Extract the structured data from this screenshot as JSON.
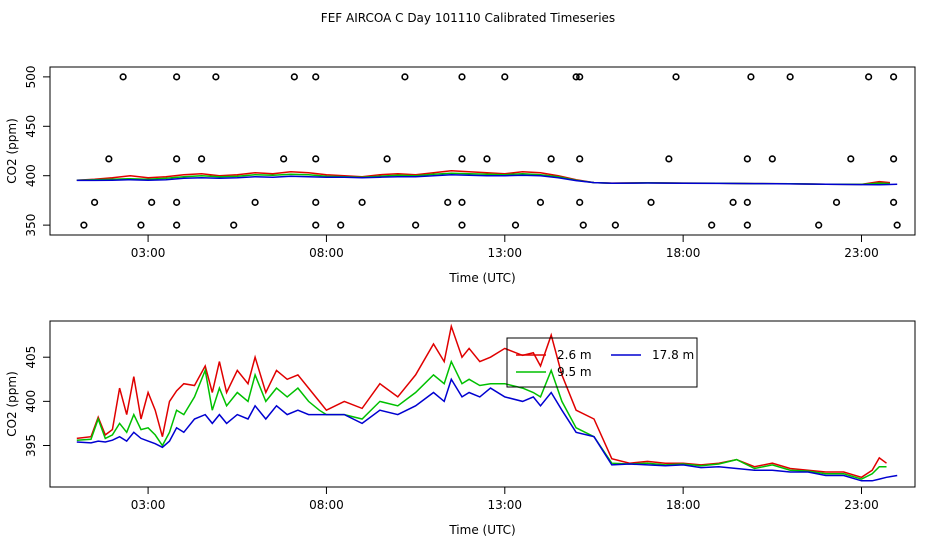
{
  "title": "FEF AIRCOA C  Day 101110  Calibrated Timeseries",
  "colors": {
    "c2_6": "#e00000",
    "c9_5": "#00c000",
    "c17_8": "#0000d0",
    "axis": "#000000",
    "bg": "#ffffff"
  },
  "chart_data": [
    {
      "type": "line",
      "panel": "top",
      "xlabel": "Time (UTC)",
      "ylabel": "CO2 (ppm)",
      "xlim": [
        0.25,
        24.5
      ],
      "ylim": [
        340,
        510
      ],
      "x_ticks": [
        3,
        8,
        13,
        18,
        23
      ],
      "x_tick_labels": [
        "03:00",
        "08:00",
        "13:00",
        "18:00",
        "23:00"
      ],
      "y_ticks": [
        350,
        400,
        450,
        500
      ],
      "y_tick_labels": [
        "350",
        "400",
        "450",
        "500"
      ],
      "series": [
        {
          "name": "2.6 m",
          "color_key": "c2_6",
          "x": [
            1.0,
            1.5,
            2.0,
            2.5,
            3.0,
            3.5,
            4.0,
            4.5,
            5.0,
            5.5,
            6.0,
            6.5,
            7.0,
            7.5,
            8.0,
            8.5,
            9.0,
            9.5,
            10.0,
            10.5,
            11.0,
            11.5,
            12.0,
            12.5,
            13.0,
            13.5,
            14.0,
            14.5,
            15.0,
            15.5,
            16.0,
            17.0,
            18.0,
            19.0,
            20.0,
            21.0,
            22.0,
            23.0,
            23.5,
            23.8
          ],
          "values": [
            395.5,
            396.5,
            398,
            400,
            398,
            399,
            401,
            402,
            400,
            401,
            403,
            402,
            404,
            403,
            401,
            400,
            399,
            401,
            402,
            401,
            403,
            405,
            404,
            403,
            402,
            404,
            403,
            400,
            396,
            393,
            392.5,
            392.8,
            392.5,
            392.3,
            392,
            391.8,
            391.4,
            391.2,
            394,
            393
          ]
        },
        {
          "name": "9.5 m",
          "color_key": "c9_5",
          "x": [
            1.0,
            1.5,
            2.0,
            2.5,
            3.0,
            3.5,
            4.0,
            4.5,
            5.0,
            5.5,
            6.0,
            6.5,
            7.0,
            7.5,
            8.0,
            8.5,
            9.0,
            9.5,
            10.0,
            10.5,
            11.0,
            11.5,
            12.0,
            12.5,
            13.0,
            13.5,
            14.0,
            14.5,
            15.0,
            15.5,
            16.0,
            17.0,
            18.0,
            19.0,
            20.0,
            21.0,
            22.0,
            23.0,
            23.5,
            23.8
          ],
          "values": [
            395.5,
            396,
            396.5,
            397,
            396.5,
            397.5,
            399,
            400,
            399,
            399.5,
            401,
            400.5,
            401.5,
            401,
            399.5,
            399,
            398.5,
            399.5,
            400.5,
            400,
            401.5,
            402.5,
            402,
            401.5,
            401,
            402,
            401,
            399,
            395.5,
            393,
            392.4,
            392.7,
            392.5,
            392.3,
            392,
            391.8,
            391.4,
            391.2,
            392.5,
            392
          ]
        },
        {
          "name": "17.8 m",
          "color_key": "c17_8",
          "x": [
            1.0,
            1.5,
            2.0,
            2.5,
            3.0,
            3.5,
            4.0,
            4.5,
            5.0,
            5.5,
            6.0,
            6.5,
            7.0,
            7.5,
            8.0,
            8.5,
            9.0,
            9.5,
            10.0,
            10.5,
            11.0,
            11.5,
            12.0,
            12.5,
            13.0,
            13.5,
            14.0,
            14.5,
            15.0,
            15.5,
            16.0,
            17.0,
            18.0,
            19.0,
            20.0,
            21.0,
            22.0,
            23.0,
            23.5,
            24.0
          ],
          "values": [
            395.3,
            395.3,
            395.5,
            396,
            395.5,
            396,
            397.5,
            398,
            397.5,
            398,
            399,
            398.5,
            399.5,
            399,
            398.5,
            398.5,
            398,
            398.5,
            399,
            399,
            400,
            401,
            400.5,
            400,
            400,
            400.5,
            400,
            398,
            395,
            393,
            392.3,
            392.6,
            392.4,
            392.2,
            392,
            391.7,
            391.3,
            391,
            390.8,
            391.3
          ]
        }
      ],
      "scatter": {
        "name": "calibration points",
        "x": [
          1.2,
          2.8,
          3.8,
          5.4,
          7.7,
          8.4,
          10.5,
          11.8,
          13.3,
          15.2,
          16.1,
          18.8,
          19.8,
          21.8,
          24.0,
          1.5,
          3.1,
          3.8,
          6.0,
          7.7,
          9.0,
          11.4,
          11.8,
          14.0,
          15.1,
          17.1,
          19.4,
          19.8,
          22.3,
          23.9,
          1.9,
          3.8,
          4.5,
          6.8,
          7.7,
          9.7,
          11.8,
          12.5,
          14.3,
          15.1,
          17.6,
          19.8,
          20.5,
          22.7,
          23.9,
          2.3,
          3.8,
          4.9,
          7.1,
          7.7,
          10.2,
          11.8,
          13.0,
          15.0,
          15.1,
          17.8,
          19.9,
          21.0,
          23.2,
          23.9
        ],
        "values": [
          350,
          350,
          350,
          350,
          350,
          350,
          350,
          350,
          350,
          350,
          350,
          350,
          350,
          350,
          350,
          373,
          373,
          373,
          373,
          373,
          373,
          373,
          373,
          373,
          373,
          373,
          373,
          373,
          373,
          373,
          417,
          417,
          417,
          417,
          417,
          417,
          417,
          417,
          417,
          417,
          417,
          417,
          417,
          417,
          417,
          500,
          500,
          500,
          500,
          500,
          500,
          500,
          500,
          500,
          500,
          500,
          500,
          500,
          500,
          500
        ]
      }
    },
    {
      "type": "line",
      "panel": "bottom",
      "xlabel": "Time (UTC)",
      "ylabel": "CO2 (ppm)",
      "xlim": [
        0.25,
        24.5
      ],
      "ylim": [
        390.3,
        409.1
      ],
      "x_ticks": [
        3,
        8,
        13,
        18,
        23
      ],
      "x_tick_labels": [
        "03:00",
        "08:00",
        "13:00",
        "18:00",
        "23:00"
      ],
      "y_ticks": [
        395,
        400,
        405
      ],
      "y_tick_labels": [
        "395",
        "400",
        "405"
      ],
      "legend": {
        "placement": "top-center",
        "entries": [
          "2.6 m",
          "17.8 m",
          "9.5 m"
        ]
      },
      "series": [
        {
          "name": "2.6 m",
          "color_key": "c2_6",
          "x": [
            1.0,
            1.4,
            1.6,
            1.8,
            2.0,
            2.2,
            2.4,
            2.6,
            2.8,
            3.0,
            3.2,
            3.4,
            3.6,
            3.8,
            4.0,
            4.3,
            4.6,
            4.8,
            5.0,
            5.2,
            5.5,
            5.8,
            6.0,
            6.3,
            6.6,
            6.9,
            7.2,
            7.5,
            7.8,
            8.0,
            8.5,
            9.0,
            9.5,
            10.0,
            10.5,
            11.0,
            11.3,
            11.5,
            11.8,
            12.0,
            12.3,
            12.6,
            13.0,
            13.5,
            13.8,
            14.0,
            14.3,
            14.6,
            15.0,
            15.5,
            16.0,
            16.5,
            17.0,
            17.5,
            18.0,
            18.5,
            19.0,
            19.5,
            20.0,
            20.5,
            21.0,
            21.5,
            22.0,
            22.5,
            23.0,
            23.3,
            23.5,
            23.7
          ],
          "values": [
            395.8,
            396.0,
            398.2,
            396.2,
            396.8,
            401.5,
            398.5,
            402.8,
            398.0,
            401.0,
            399.0,
            396.0,
            400.0,
            401.2,
            402.0,
            401.8,
            404.0,
            401.0,
            404.5,
            401.0,
            403.5,
            402.0,
            405.0,
            401.0,
            403.5,
            402.5,
            403.0,
            401.5,
            400.0,
            399.0,
            400.0,
            399.2,
            402.0,
            400.5,
            403.0,
            406.5,
            404.5,
            408.5,
            405.0,
            406.0,
            404.5,
            405.0,
            406.0,
            405.2,
            405.5,
            404.0,
            407.5,
            403.0,
            399.0,
            398.0,
            393.5,
            393.0,
            393.2,
            393.0,
            393.0,
            392.8,
            393.0,
            393.4,
            392.6,
            393.0,
            392.4,
            392.2,
            392.0,
            392.0,
            391.4,
            392.2,
            393.6,
            393.0
          ]
        },
        {
          "name": "9.5 m",
          "color_key": "c9_5",
          "x": [
            1.0,
            1.4,
            1.6,
            1.8,
            2.0,
            2.2,
            2.4,
            2.6,
            2.8,
            3.0,
            3.2,
            3.4,
            3.6,
            3.8,
            4.0,
            4.3,
            4.6,
            4.8,
            5.0,
            5.2,
            5.5,
            5.8,
            6.0,
            6.3,
            6.6,
            6.9,
            7.2,
            7.5,
            7.8,
            8.0,
            8.5,
            9.0,
            9.5,
            10.0,
            10.5,
            11.0,
            11.3,
            11.5,
            11.8,
            12.0,
            12.3,
            12.6,
            13.0,
            13.5,
            13.8,
            14.0,
            14.3,
            14.6,
            15.0,
            15.5,
            16.0,
            16.5,
            17.0,
            17.5,
            18.0,
            18.5,
            19.0,
            19.5,
            20.0,
            20.5,
            21.0,
            21.5,
            22.0,
            22.5,
            23.0,
            23.3,
            23.5,
            23.7
          ],
          "values": [
            395.6,
            395.7,
            398.0,
            395.8,
            396.2,
            397.5,
            396.5,
            398.5,
            396.8,
            397.0,
            396.2,
            395.0,
            396.5,
            399.0,
            398.5,
            400.5,
            403.5,
            399.0,
            401.5,
            399.5,
            401.0,
            400.0,
            403.0,
            400.0,
            401.5,
            400.5,
            401.5,
            400.0,
            399.0,
            398.5,
            398.5,
            398.0,
            400.0,
            399.5,
            401.0,
            403.0,
            402.0,
            404.5,
            402.0,
            402.5,
            401.8,
            402.0,
            402.0,
            401.5,
            401.0,
            400.5,
            403.5,
            400.0,
            397.0,
            396.0,
            393.0,
            392.9,
            393.0,
            392.8,
            392.9,
            392.7,
            392.9,
            393.4,
            392.4,
            392.8,
            392.2,
            392.1,
            391.8,
            391.8,
            391.2,
            391.8,
            392.6,
            392.6
          ]
        },
        {
          "name": "17.8 m",
          "color_key": "c17_8",
          "x": [
            1.0,
            1.4,
            1.6,
            1.8,
            2.0,
            2.2,
            2.4,
            2.6,
            2.8,
            3.0,
            3.2,
            3.4,
            3.6,
            3.8,
            4.0,
            4.3,
            4.6,
            4.8,
            5.0,
            5.2,
            5.5,
            5.8,
            6.0,
            6.3,
            6.6,
            6.9,
            7.2,
            7.5,
            7.8,
            8.0,
            8.5,
            9.0,
            9.5,
            10.0,
            10.5,
            11.0,
            11.3,
            11.5,
            11.8,
            12.0,
            12.3,
            12.6,
            13.0,
            13.5,
            13.8,
            14.0,
            14.3,
            14.6,
            15.0,
            15.5,
            16.0,
            16.5,
            17.0,
            17.5,
            18.0,
            18.5,
            19.0,
            19.5,
            20.0,
            20.5,
            21.0,
            21.5,
            22.0,
            22.5,
            23.0,
            23.3,
            23.5,
            23.7,
            24.0
          ],
          "values": [
            395.4,
            395.3,
            395.5,
            395.4,
            395.6,
            396.0,
            395.5,
            396.5,
            395.8,
            395.5,
            395.2,
            394.8,
            395.5,
            397.0,
            396.5,
            398.0,
            398.5,
            397.5,
            398.5,
            397.5,
            398.5,
            398.0,
            399.5,
            398.0,
            399.5,
            398.5,
            399.0,
            398.5,
            398.5,
            398.5,
            398.5,
            397.5,
            399.0,
            398.5,
            399.5,
            401.0,
            400.0,
            402.5,
            400.5,
            401.0,
            400.5,
            401.5,
            400.5,
            400.0,
            400.5,
            399.5,
            401.0,
            399.0,
            396.5,
            396.0,
            392.8,
            392.9,
            392.8,
            392.7,
            392.8,
            392.5,
            392.6,
            392.4,
            392.2,
            392.2,
            392.0,
            392.0,
            391.6,
            391.6,
            391.0,
            391.0,
            391.2,
            391.4,
            391.6
          ]
        }
      ]
    }
  ]
}
